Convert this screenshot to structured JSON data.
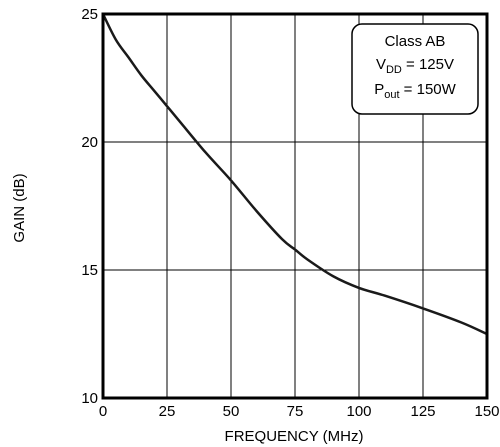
{
  "chart_data": {
    "type": "line",
    "title": "",
    "xlabel": "FREQUENCY (MHz)",
    "ylabel": "GAIN (dB)",
    "xlim": [
      0,
      150
    ],
    "ylim": [
      10,
      25
    ],
    "xticks": [
      "0",
      "25",
      "50",
      "75",
      "100",
      "125",
      "150"
    ],
    "yticks": [
      "10",
      "15",
      "20",
      "25"
    ],
    "grid": true,
    "series": [
      {
        "x": [
          0,
          5,
          10,
          15,
          20,
          25,
          30,
          40,
          50,
          60,
          70,
          75,
          80,
          90,
          100,
          110,
          125,
          140,
          150
        ],
        "y": [
          25.0,
          24.0,
          23.3,
          22.6,
          22.0,
          21.4,
          20.8,
          19.6,
          18.5,
          17.3,
          16.2,
          15.8,
          15.4,
          14.75,
          14.3,
          14.0,
          13.5,
          12.95,
          12.5
        ]
      }
    ],
    "legend": {
      "placement": "top-right",
      "line1": "Class AB",
      "line2_main": "V",
      "line2_sub": "DD",
      "line2_rest": " = 125V",
      "line3_main": "P",
      "line3_sub": "out",
      "line3_rest": " = 150W"
    },
    "colors": {
      "line": "#1a1a1a",
      "grid": "#000000",
      "frame": "#000000",
      "background": "#ffffff"
    }
  }
}
